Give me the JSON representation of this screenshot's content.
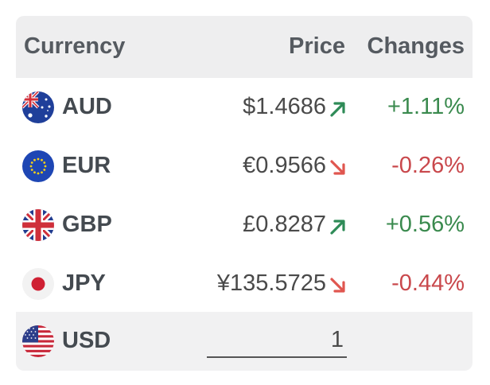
{
  "header": {
    "currency": "Currency",
    "price": "Price",
    "changes": "Changes"
  },
  "rows": [
    {
      "code": "AUD",
      "flag": "australia-flag-icon",
      "price": "$1.4686",
      "direction": "up",
      "change": "+1.11%"
    },
    {
      "code": "EUR",
      "flag": "eu-flag-icon",
      "price": "€0.9566",
      "direction": "down",
      "change": "-0.26%"
    },
    {
      "code": "GBP",
      "flag": "uk-flag-icon",
      "price": "£0.8287",
      "direction": "up",
      "change": "+0.56%"
    },
    {
      "code": "JPY",
      "flag": "japan-flag-icon",
      "price": "¥135.5725",
      "direction": "down",
      "change": "-0.44%"
    }
  ],
  "base": {
    "code": "USD",
    "flag": "us-flag-icon",
    "amount": "1"
  },
  "colors": {
    "up": "#3a8a4e",
    "down": "#c9484c",
    "up_arrow": "#2e8b57",
    "down_arrow": "#e0564f",
    "header_bg": "#eeeeef"
  }
}
